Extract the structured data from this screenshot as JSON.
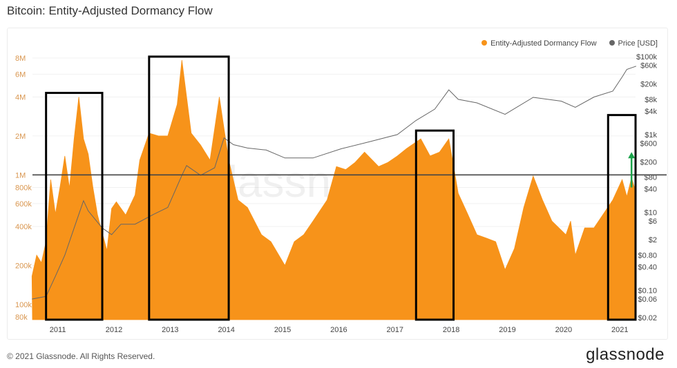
{
  "title": "Bitcoin: Entity-Adjusted Dormancy Flow",
  "footer": "© 2021 Glassnode. All Rights Reserved.",
  "logo": "glassnode",
  "watermark": "glassnode",
  "colors": {
    "flow": "#f7931a",
    "price": "#666666",
    "left_ticks": "#d9964f",
    "box": "#000000",
    "arrow": "#1aa34a",
    "threshold": "#444444"
  },
  "chart_data": {
    "type": "area",
    "title": "Bitcoin: Entity-Adjusted Dormancy Flow",
    "legend_position": "top-right",
    "grid": true,
    "x_ticks": [
      "2011",
      "2012",
      "2013",
      "2014",
      "2015",
      "2016",
      "2017",
      "2018",
      "2019",
      "2020",
      "2021"
    ],
    "xlim": [
      "2010-07",
      "2021-04"
    ],
    "left_axis": {
      "scale": "log",
      "ylim": [
        80000,
        8000000
      ],
      "ticks": [
        {
          "v": 80000,
          "label": "80k"
        },
        {
          "v": 100000,
          "label": "100k"
        },
        {
          "v": 200000,
          "label": "200k"
        },
        {
          "v": 400000,
          "label": "400k"
        },
        {
          "v": 600000,
          "label": "600k"
        },
        {
          "v": 800000,
          "label": "800k"
        },
        {
          "v": 1000000,
          "label": "1M"
        },
        {
          "v": 2000000,
          "label": "2M"
        },
        {
          "v": 4000000,
          "label": "4M"
        },
        {
          "v": 6000000,
          "label": "6M"
        },
        {
          "v": 8000000,
          "label": "8M"
        }
      ]
    },
    "right_axis": {
      "scale": "log",
      "ylim": [
        0.02,
        100000
      ],
      "ticks": [
        {
          "v": 100000,
          "label": "$100k"
        },
        {
          "v": 60000,
          "label": "$60k"
        },
        {
          "v": 20000,
          "label": "$20k"
        },
        {
          "v": 8000,
          "label": "$8k"
        },
        {
          "v": 4000,
          "label": "$4k"
        },
        {
          "v": 1000,
          "label": "$1k"
        },
        {
          "v": 600,
          "label": "$600"
        },
        {
          "v": 200,
          "label": "$200"
        },
        {
          "v": 80,
          "label": "$80"
        },
        {
          "v": 40,
          "label": "$40"
        },
        {
          "v": 10,
          "label": "$10"
        },
        {
          "v": 6,
          "label": "$6"
        },
        {
          "v": 2,
          "label": "$2"
        },
        {
          "v": 0.8,
          "label": "$0.80"
        },
        {
          "v": 0.4,
          "label": "$0.40"
        },
        {
          "v": 0.1,
          "label": "$0.10"
        },
        {
          "v": 0.06,
          "label": "$0.06"
        },
        {
          "v": 0.02,
          "label": "$0.02"
        }
      ]
    },
    "series": [
      {
        "name": "Entity-Adjusted Dormancy Flow",
        "axis": "left",
        "points": [
          [
            "2010-07",
            165000
          ],
          [
            "2010-08",
            240000
          ],
          [
            "2010-09",
            210000
          ],
          [
            "2010-10",
            305000
          ],
          [
            "2010-11",
            920000
          ],
          [
            "2010-12",
            500000
          ],
          [
            "2011-01",
            810000
          ],
          [
            "2011-02",
            1400000
          ],
          [
            "2011-03",
            790000
          ],
          [
            "2011-04",
            1900000
          ],
          [
            "2011-05",
            4000000
          ],
          [
            "2011-06",
            1900000
          ],
          [
            "2011-07",
            1450000
          ],
          [
            "2011-08",
            800000
          ],
          [
            "2011-09",
            490000
          ],
          [
            "2011-11",
            260000
          ],
          [
            "2011-12",
            550000
          ],
          [
            "2012-01",
            620000
          ],
          [
            "2012-03",
            490000
          ],
          [
            "2012-05",
            700000
          ],
          [
            "2012-06",
            1300000
          ],
          [
            "2012-08",
            2100000
          ],
          [
            "2012-10",
            2000000
          ],
          [
            "2012-12",
            2000000
          ],
          [
            "2013-02",
            3500000
          ],
          [
            "2013-03",
            7700000
          ],
          [
            "2013-05",
            2100000
          ],
          [
            "2013-07",
            1700000
          ],
          [
            "2013-09",
            1300000
          ],
          [
            "2013-11",
            4000000
          ],
          [
            "2014-01",
            1300000
          ],
          [
            "2014-03",
            640000
          ],
          [
            "2014-05",
            560000
          ],
          [
            "2014-08",
            345000
          ],
          [
            "2014-10",
            305000
          ],
          [
            "2015-01",
            200000
          ],
          [
            "2015-03",
            305000
          ],
          [
            "2015-05",
            345000
          ],
          [
            "2015-07",
            440000
          ],
          [
            "2015-10",
            640000
          ],
          [
            "2015-12",
            1160000
          ],
          [
            "2016-02",
            1100000
          ],
          [
            "2016-04",
            1250000
          ],
          [
            "2016-06",
            1500000
          ],
          [
            "2016-09",
            1160000
          ],
          [
            "2016-11",
            1250000
          ],
          [
            "2017-01",
            1400000
          ],
          [
            "2017-03",
            1600000
          ],
          [
            "2017-06",
            1900000
          ],
          [
            "2017-08",
            1400000
          ],
          [
            "2017-10",
            1500000
          ],
          [
            "2017-12",
            1900000
          ],
          [
            "2018-02",
            720000
          ],
          [
            "2018-04",
            500000
          ],
          [
            "2018-06",
            345000
          ],
          [
            "2018-08",
            325000
          ],
          [
            "2018-10",
            305000
          ],
          [
            "2018-12",
            185000
          ],
          [
            "2019-02",
            270000
          ],
          [
            "2019-04",
            560000
          ],
          [
            "2019-06",
            980000
          ],
          [
            "2019-08",
            640000
          ],
          [
            "2019-10",
            440000
          ],
          [
            "2020-01",
            345000
          ],
          [
            "2020-02",
            440000
          ],
          [
            "2020-03",
            240000
          ],
          [
            "2020-05",
            390000
          ],
          [
            "2020-07",
            390000
          ],
          [
            "2020-09",
            500000
          ],
          [
            "2020-11",
            640000
          ],
          [
            "2021-01",
            920000
          ],
          [
            "2021-02",
            680000
          ],
          [
            "2021-03",
            950000
          ],
          [
            "2021-04",
            720000
          ]
        ]
      },
      {
        "name": "Price [USD]",
        "axis": "right",
        "points": [
          [
            "2010-07",
            0.06
          ],
          [
            "2010-10",
            0.07
          ],
          [
            "2010-12",
            0.23
          ],
          [
            "2011-02",
            0.8
          ],
          [
            "2011-04",
            4
          ],
          [
            "2011-06",
            20
          ],
          [
            "2011-07",
            11
          ],
          [
            "2011-10",
            4
          ],
          [
            "2011-12",
            2.7
          ],
          [
            "2012-02",
            5
          ],
          [
            "2012-05",
            5
          ],
          [
            "2012-09",
            9
          ],
          [
            "2012-12",
            13.5
          ],
          [
            "2013-03",
            90
          ],
          [
            "2013-04",
            160
          ],
          [
            "2013-07",
            90
          ],
          [
            "2013-10",
            140
          ],
          [
            "2013-12",
            820
          ],
          [
            "2014-02",
            550
          ],
          [
            "2014-05",
            450
          ],
          [
            "2014-09",
            400
          ],
          [
            "2015-01",
            250
          ],
          [
            "2015-07",
            250
          ],
          [
            "2016-01",
            430
          ],
          [
            "2016-07",
            650
          ],
          [
            "2017-01",
            1000
          ],
          [
            "2017-05",
            2300
          ],
          [
            "2017-09",
            4500
          ],
          [
            "2017-12",
            14000
          ],
          [
            "2018-02",
            8000
          ],
          [
            "2018-06",
            6500
          ],
          [
            "2018-12",
            3300
          ],
          [
            "2019-06",
            9000
          ],
          [
            "2019-12",
            7200
          ],
          [
            "2020-03",
            5000
          ],
          [
            "2020-07",
            9200
          ],
          [
            "2020-11",
            13000
          ],
          [
            "2021-01",
            30000
          ],
          [
            "2021-02",
            47000
          ],
          [
            "2021-04",
            57000
          ]
        ]
      }
    ],
    "threshold_line": {
      "axis": "left",
      "value": 1000000
    },
    "annotations": {
      "boxes": [
        {
          "from": "2010-10",
          "to": "2011-10",
          "top": 4300000
        },
        {
          "from": "2012-08",
          "to": "2014-01",
          "top": 8200000
        },
        {
          "from": "2017-05",
          "to": "2018-01",
          "top": 2200000
        },
        {
          "from": "2020-10",
          "to": "2021-04",
          "top": 2900000
        }
      ],
      "arrow": {
        "at": "2021-03",
        "from": 800000,
        "to": 1500000
      }
    }
  }
}
